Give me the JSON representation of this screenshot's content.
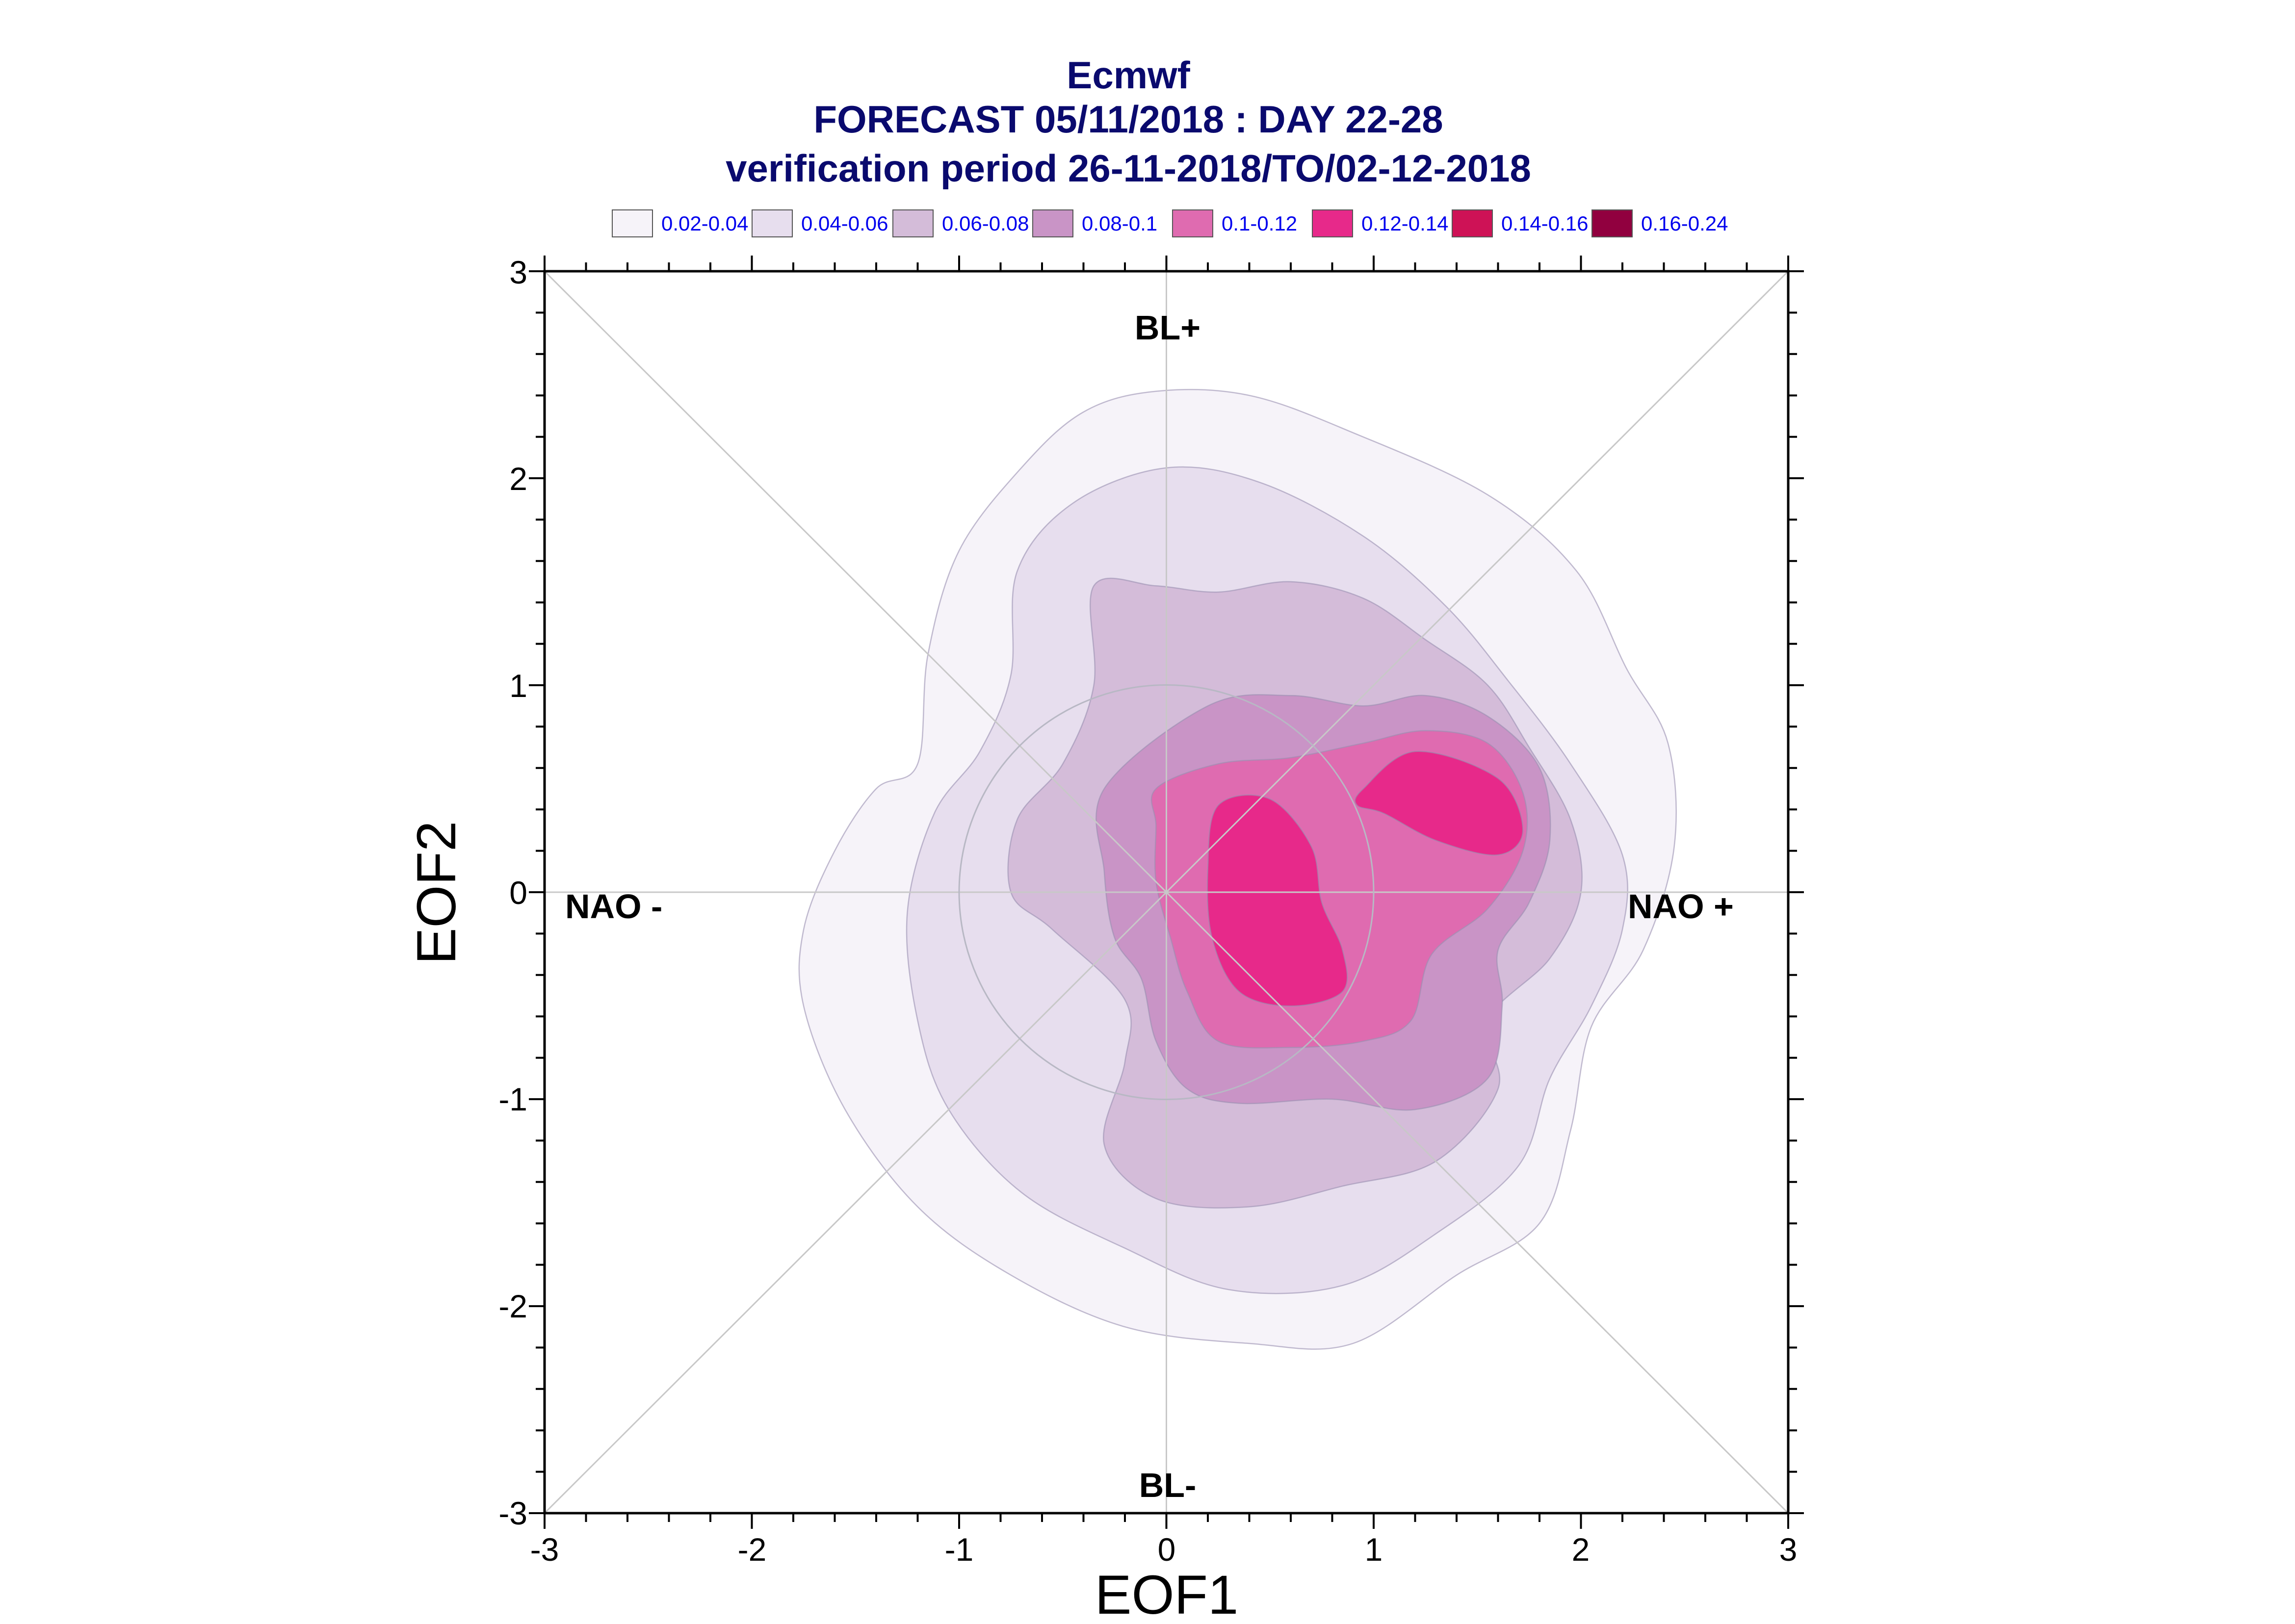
{
  "chart_data": {
    "type": "contour",
    "title_lines": [
      "Ecmwf",
      "FORECAST 05/11/2018 : DAY 22-28",
      "verification period 26-11-2018/TO/02-12-2018"
    ],
    "xlabel": "EOF1",
    "ylabel": "EOF2",
    "xlim": [
      -3,
      3
    ],
    "ylim": [
      -3,
      3
    ],
    "xticks": [
      "-3",
      "-2",
      "-1",
      "0",
      "1",
      "2",
      "3"
    ],
    "yticks": [
      "3",
      "2",
      "1",
      "0",
      "-1",
      "-2",
      "-3"
    ],
    "grid": false,
    "legend_position": "top",
    "legend": [
      {
        "label": "0.02-0.04",
        "color": "#f6f3f9"
      },
      {
        "label": "0.04-0.06",
        "color": "#e7deee"
      },
      {
        "label": "0.06-0.08",
        "color": "#d4bcd9"
      },
      {
        "label": "0.08-0.1",
        "color": "#c994c6"
      },
      {
        "label": "0.1-0.12",
        "color": "#df6bb0"
      },
      {
        "label": "0.12-0.14",
        "color": "#e7298a"
      },
      {
        "label": "0.14-0.16",
        "color": "#ce1256"
      },
      {
        "label": "0.16-0.24",
        "color": "#91003f"
      }
    ],
    "region_labels": {
      "top": "BL+",
      "bottom": "BL-",
      "left": "NAO -",
      "right": "NAO +"
    },
    "reference_circle_radius": 1,
    "contours": [
      {
        "level": "0.02-0.04",
        "color": "#f6f3f9",
        "points": [
          [
            -0.05,
            2.42
          ],
          [
            0.4,
            2.4
          ],
          [
            0.9,
            2.22
          ],
          [
            1.55,
            1.92
          ],
          [
            1.98,
            1.55
          ],
          [
            2.22,
            1.08
          ],
          [
            2.42,
            0.72
          ],
          [
            2.45,
            0.22
          ],
          [
            2.3,
            -0.28
          ],
          [
            2.05,
            -0.65
          ],
          [
            1.95,
            -1.15
          ],
          [
            1.8,
            -1.6
          ],
          [
            1.4,
            -1.85
          ],
          [
            0.9,
            -2.18
          ],
          [
            0.4,
            -2.18
          ],
          [
            -0.2,
            -2.1
          ],
          [
            -0.75,
            -1.85
          ],
          [
            -1.2,
            -1.52
          ],
          [
            -1.55,
            -1.05
          ],
          [
            -1.75,
            -0.55
          ],
          [
            -1.75,
            -0.18
          ],
          [
            -1.6,
            0.2
          ],
          [
            -1.4,
            0.5
          ],
          [
            -1.2,
            0.62
          ],
          [
            -1.15,
            1.15
          ],
          [
            -1.0,
            1.65
          ],
          [
            -0.7,
            2.05
          ],
          [
            -0.4,
            2.32
          ]
        ]
      },
      {
        "level": "0.04-0.06",
        "color": "#e7deee",
        "points": [
          [
            0.0,
            2.05
          ],
          [
            0.45,
            1.98
          ],
          [
            0.95,
            1.72
          ],
          [
            1.35,
            1.38
          ],
          [
            1.65,
            1.02
          ],
          [
            1.95,
            0.62
          ],
          [
            2.2,
            0.18
          ],
          [
            2.2,
            -0.18
          ],
          [
            2.05,
            -0.55
          ],
          [
            1.85,
            -0.9
          ],
          [
            1.7,
            -1.32
          ],
          [
            1.3,
            -1.65
          ],
          [
            0.85,
            -1.9
          ],
          [
            0.3,
            -1.92
          ],
          [
            -0.2,
            -1.72
          ],
          [
            -0.7,
            -1.45
          ],
          [
            -1.05,
            -1.05
          ],
          [
            -1.2,
            -0.62
          ],
          [
            -1.25,
            -0.1
          ],
          [
            -1.12,
            0.38
          ],
          [
            -0.9,
            0.68
          ],
          [
            -0.75,
            1.05
          ],
          [
            -0.72,
            1.55
          ],
          [
            -0.45,
            1.88
          ]
        ]
      },
      {
        "level": "0.06-0.08",
        "color": "#d4bcd9",
        "points": [
          [
            -0.35,
            1.48
          ],
          [
            -0.05,
            1.48
          ],
          [
            0.25,
            1.45
          ],
          [
            0.6,
            1.5
          ],
          [
            0.95,
            1.42
          ],
          [
            1.25,
            1.22
          ],
          [
            1.55,
            1.0
          ],
          [
            1.75,
            0.7
          ],
          [
            1.95,
            0.35
          ],
          [
            2.0,
            0.0
          ],
          [
            1.85,
            -0.32
          ],
          [
            1.55,
            -0.62
          ],
          [
            1.6,
            -0.95
          ],
          [
            1.3,
            -1.3
          ],
          [
            0.85,
            -1.42
          ],
          [
            0.4,
            -1.52
          ],
          [
            -0.05,
            -1.48
          ],
          [
            -0.3,
            -1.22
          ],
          [
            -0.2,
            -0.82
          ],
          [
            -0.2,
            -0.52
          ],
          [
            -0.55,
            -0.18
          ],
          [
            -0.75,
            0.0
          ],
          [
            -0.72,
            0.35
          ],
          [
            -0.5,
            0.62
          ],
          [
            -0.35,
            1.0
          ]
        ]
      },
      {
        "level": "0.08-0.1",
        "color": "#c994c6",
        "points": [
          [
            -0.3,
            0.5
          ],
          [
            0.2,
            0.9
          ],
          [
            0.6,
            0.95
          ],
          [
            0.95,
            0.9
          ],
          [
            1.25,
            0.95
          ],
          [
            1.55,
            0.85
          ],
          [
            1.8,
            0.6
          ],
          [
            1.85,
            0.25
          ],
          [
            1.75,
            -0.05
          ],
          [
            1.6,
            -0.28
          ],
          [
            1.62,
            -0.55
          ],
          [
            1.55,
            -0.9
          ],
          [
            1.2,
            -1.05
          ],
          [
            0.8,
            -1.0
          ],
          [
            0.35,
            -1.02
          ],
          [
            0.1,
            -0.95
          ],
          [
            -0.05,
            -0.72
          ],
          [
            -0.12,
            -0.42
          ],
          [
            -0.25,
            -0.22
          ],
          [
            -0.3,
            0.1
          ]
        ]
      },
      {
        "level": "0.1-0.12",
        "color": "#df6bb0",
        "points": [
          [
            -0.05,
            0.5
          ],
          [
            0.25,
            0.62
          ],
          [
            0.6,
            0.65
          ],
          [
            0.95,
            0.72
          ],
          [
            1.25,
            0.78
          ],
          [
            1.55,
            0.72
          ],
          [
            1.72,
            0.48
          ],
          [
            1.72,
            0.2
          ],
          [
            1.55,
            -0.08
          ],
          [
            1.28,
            -0.3
          ],
          [
            1.18,
            -0.62
          ],
          [
            0.95,
            -0.72
          ],
          [
            0.6,
            -0.75
          ],
          [
            0.25,
            -0.72
          ],
          [
            0.1,
            -0.48
          ],
          [
            0.02,
            -0.22
          ],
          [
            -0.05,
            0.05
          ],
          [
            -0.05,
            0.32
          ]
        ]
      },
      {
        "level": "0.12-0.14",
        "color": "#e7298a",
        "points": [
          [
            0.25,
            0.42
          ],
          [
            0.5,
            0.45
          ],
          [
            0.7,
            0.22
          ],
          [
            0.75,
            -0.05
          ],
          [
            0.85,
            -0.28
          ],
          [
            0.85,
            -0.48
          ],
          [
            0.6,
            -0.55
          ],
          [
            0.35,
            -0.48
          ],
          [
            0.22,
            -0.22
          ],
          [
            0.2,
            0.12
          ]
        ]
      },
      {
        "level": "0.12-0.14",
        "color": "#e7298a",
        "points": [
          [
            0.95,
            0.5
          ],
          [
            1.2,
            0.68
          ],
          [
            1.6,
            0.55
          ],
          [
            1.72,
            0.3
          ],
          [
            1.6,
            0.18
          ],
          [
            1.3,
            0.25
          ],
          [
            1.05,
            0.38
          ],
          [
            0.92,
            0.42
          ]
        ]
      }
    ]
  }
}
